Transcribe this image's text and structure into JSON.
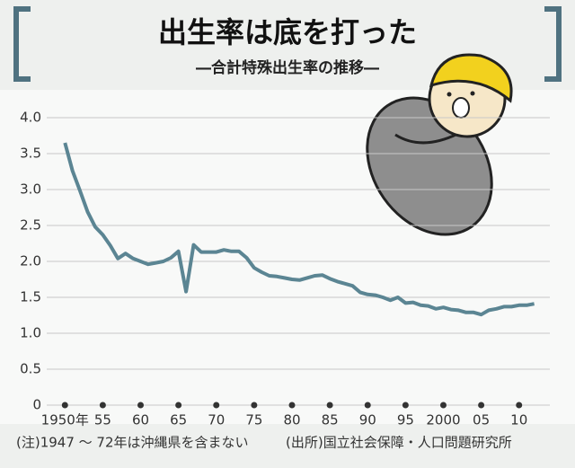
{
  "chart_data": {
    "type": "line",
    "title": "出生率は底を打った",
    "subtitle": "―合計特殊出生率の推移―",
    "notes": [
      "(注)1947 ～ 72年は沖縄県を含まない",
      "(出所)国立社会保障・人口問題研究所"
    ],
    "x": [
      1950,
      1951,
      1952,
      1953,
      1954,
      1955,
      1956,
      1957,
      1958,
      1959,
      1960,
      1961,
      1962,
      1963,
      1964,
      1965,
      1966,
      1967,
      1968,
      1969,
      1970,
      1971,
      1972,
      1973,
      1974,
      1975,
      1976,
      1977,
      1978,
      1979,
      1980,
      1981,
      1982,
      1983,
      1984,
      1985,
      1986,
      1987,
      1988,
      1989,
      1990,
      1991,
      1992,
      1993,
      1994,
      1995,
      1996,
      1997,
      1998,
      1999,
      2000,
      2001,
      2002,
      2003,
      2004,
      2005,
      2006,
      2007,
      2008,
      2009,
      2010,
      2011,
      2012
    ],
    "values": [
      3.65,
      3.26,
      2.98,
      2.69,
      2.48,
      2.37,
      2.22,
      2.04,
      2.11,
      2.04,
      2.0,
      1.96,
      1.98,
      2.0,
      2.05,
      2.14,
      1.58,
      2.23,
      2.13,
      2.13,
      2.13,
      2.16,
      2.14,
      2.14,
      2.05,
      1.91,
      1.85,
      1.8,
      1.79,
      1.77,
      1.75,
      1.74,
      1.77,
      1.8,
      1.81,
      1.76,
      1.72,
      1.69,
      1.66,
      1.57,
      1.54,
      1.53,
      1.5,
      1.46,
      1.5,
      1.42,
      1.43,
      1.39,
      1.38,
      1.34,
      1.36,
      1.33,
      1.32,
      1.29,
      1.29,
      1.26,
      1.32,
      1.34,
      1.37,
      1.37,
      1.39,
      1.39,
      1.41
    ],
    "color": "#5b8593",
    "xlim": [
      1947,
      2013
    ],
    "xticks": [
      {
        "value": 1950,
        "label": "1950年"
      },
      {
        "value": 1955,
        "label": "55"
      },
      {
        "value": 1960,
        "label": "60"
      },
      {
        "value": 1965,
        "label": "65"
      },
      {
        "value": 1970,
        "label": "70"
      },
      {
        "value": 1975,
        "label": "75"
      },
      {
        "value": 1980,
        "label": "80"
      },
      {
        "value": 1985,
        "label": "85"
      },
      {
        "value": 1990,
        "label": "90"
      },
      {
        "value": 1995,
        "label": "95"
      },
      2000,
      {
        "value": 2005,
        "label": "05"
      },
      {
        "value": 2010,
        "label": "10"
      }
    ],
    "ylim": [
      0,
      4
    ],
    "yticks": [
      0,
      0.5,
      {
        "value": 1,
        "label": "1.0"
      },
      1.5,
      {
        "value": 2,
        "label": "2.0"
      },
      2.5,
      {
        "value": 3,
        "label": "3.0"
      },
      3.5,
      {
        "value": 4,
        "label": "4.0"
      }
    ],
    "grid": true
  }
}
